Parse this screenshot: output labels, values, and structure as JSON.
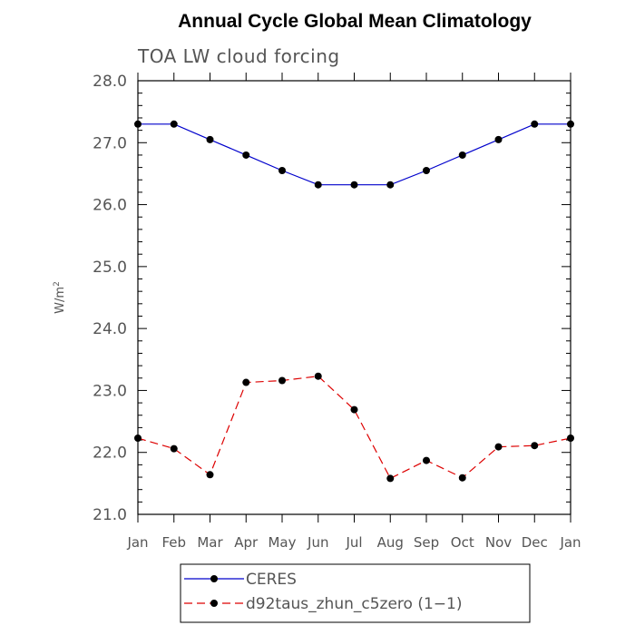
{
  "chart_data": {
    "type": "line",
    "title": "Annual Cycle Global Mean Climatology",
    "subtitle": "TOA LW cloud forcing",
    "ylabel_base": "W/m",
    "ylabel_exp": "2",
    "xlabel": "",
    "ylim": [
      21.0,
      28.0
    ],
    "yticks": [
      21.0,
      22.0,
      23.0,
      24.0,
      25.0,
      26.0,
      27.0,
      28.0
    ],
    "ytick_labels": [
      "21.0",
      "22.0",
      "23.0",
      "24.0",
      "25.0",
      "26.0",
      "27.0",
      "28.0"
    ],
    "categories": [
      "Jan",
      "Feb",
      "Mar",
      "Apr",
      "May",
      "Jun",
      "Jul",
      "Aug",
      "Sep",
      "Oct",
      "Nov",
      "Dec",
      "Jan"
    ],
    "grid": false,
    "legend_position": "bottom",
    "series": [
      {
        "name": "CERES",
        "color": "#0000cc",
        "dash": "solid",
        "marker": "filled-circle",
        "values": [
          27.3,
          27.3,
          27.05,
          26.8,
          26.55,
          26.32,
          26.32,
          26.32,
          26.55,
          26.8,
          27.05,
          27.3,
          27.3
        ]
      },
      {
        "name": "d92taus_zhun_c5zero (1−1)",
        "color": "#dd0000",
        "dash": "dashed",
        "marker": "filled-circle",
        "values": [
          22.23,
          22.06,
          21.64,
          23.13,
          23.16,
          23.23,
          22.69,
          21.58,
          21.87,
          21.59,
          22.09,
          22.11,
          22.23
        ]
      }
    ]
  }
}
